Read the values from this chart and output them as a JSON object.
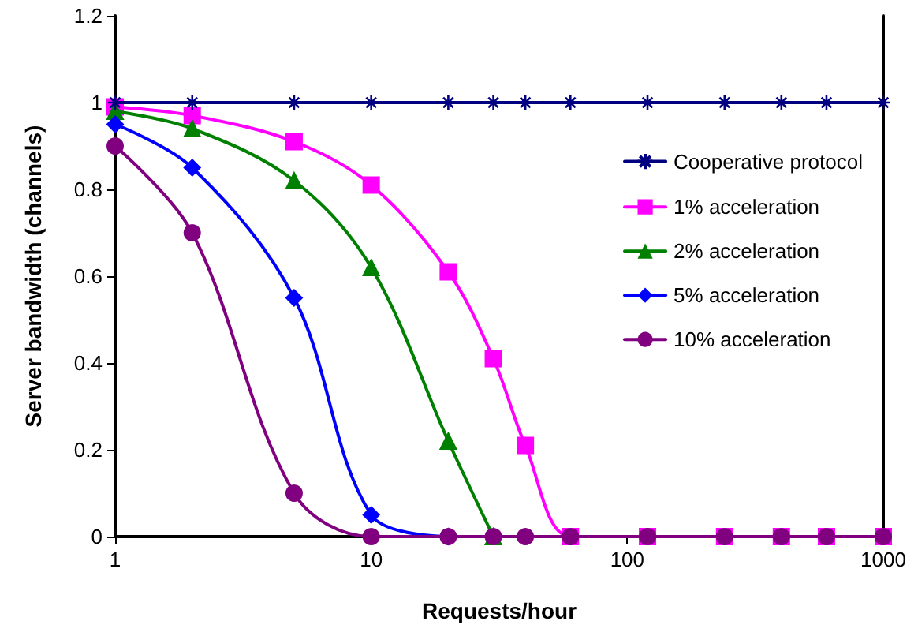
{
  "chart_data": {
    "type": "line",
    "xlabel": "Requests/hour",
    "ylabel": "Server bandwidth (channels)",
    "x": [
      1,
      2,
      5,
      10,
      20,
      30,
      40,
      60,
      120,
      240,
      400,
      600,
      1000
    ],
    "series": [
      {
        "name": "Cooperative protocol",
        "color": "#000080",
        "marker": "cross",
        "values": [
          1,
          1,
          1,
          1,
          1,
          1,
          1,
          1,
          1,
          1,
          1,
          1,
          1
        ]
      },
      {
        "name": "1% acceleration",
        "color": "#ff00ff",
        "marker": "square",
        "values": [
          0.99,
          0.97,
          0.91,
          0.81,
          0.61,
          0.41,
          0.21,
          0,
          0,
          0,
          0,
          0,
          0
        ]
      },
      {
        "name": "2% acceleration",
        "color": "#008000",
        "marker": "triangle",
        "values": [
          0.98,
          0.94,
          0.82,
          0.62,
          0.22,
          0,
          null,
          null,
          null,
          null,
          null,
          null,
          null
        ]
      },
      {
        "name": "5% acceleration",
        "color": "#0000ff",
        "marker": "diamond",
        "values": [
          0.95,
          0.85,
          0.55,
          0.05,
          0,
          null,
          null,
          null,
          null,
          null,
          null,
          null,
          null
        ]
      },
      {
        "name": "10% acceleration",
        "color": "#800080",
        "marker": "circle",
        "values": [
          0.9,
          0.7,
          0.1,
          0,
          0,
          0,
          0,
          0,
          0,
          0,
          0,
          0,
          0
        ]
      }
    ],
    "log": "x",
    "xlim": [
      1,
      1000
    ],
    "xticks": [
      1,
      10,
      100,
      1000
    ],
    "ylim": [
      0,
      1.2
    ],
    "yticks": [
      0,
      0.2,
      0.4,
      0.6,
      0.8,
      1,
      1.2
    ],
    "grid": false,
    "legend": "right",
    "line_style": "solid"
  }
}
